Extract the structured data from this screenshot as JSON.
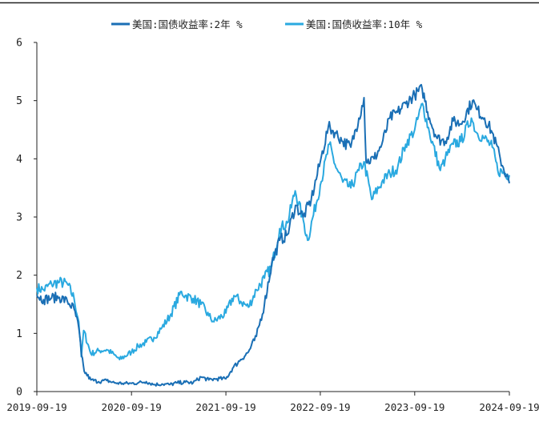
{
  "chart_data": {
    "type": "line",
    "title": "",
    "xlabel": "",
    "ylabel": "",
    "ylim": [
      0,
      6
    ],
    "yticks": [
      "0",
      "1",
      "2",
      "3",
      "4",
      "5",
      "6"
    ],
    "xticks": [
      "2019-09-19",
      "2020-09-19",
      "2021-09-19",
      "2022-09-19",
      "2023-09-19",
      "2024-09-19"
    ],
    "grid": false,
    "legend_position": "top",
    "series": [
      {
        "name": "美国:国债收益率:2年 %",
        "color": "#1a6fb5",
        "x": [
          "2019-09-19",
          "2019-10-15",
          "2019-11-15",
          "2019-12-15",
          "2020-01-15",
          "2020-02-10",
          "2020-02-28",
          "2020-03-10",
          "2020-03-20",
          "2020-04-15",
          "2020-05-15",
          "2020-06-15",
          "2020-07-15",
          "2020-08-15",
          "2020-09-19",
          "2020-10-15",
          "2020-11-15",
          "2020-12-15",
          "2021-01-15",
          "2021-02-15",
          "2021-03-15",
          "2021-04-15",
          "2021-05-15",
          "2021-06-15",
          "2021-07-15",
          "2021-08-15",
          "2021-09-19",
          "2021-10-15",
          "2021-11-15",
          "2021-12-15",
          "2022-01-15",
          "2022-02-15",
          "2022-03-15",
          "2022-04-15",
          "2022-05-15",
          "2022-06-15",
          "2022-07-15",
          "2022-08-15",
          "2022-09-19",
          "2022-10-20",
          "2022-11-15",
          "2022-12-15",
          "2023-01-15",
          "2023-02-15",
          "2023-03-07",
          "2023-03-15",
          "2023-04-15",
          "2023-05-15",
          "2023-06-15",
          "2023-07-15",
          "2023-08-15",
          "2023-09-19",
          "2023-10-18",
          "2023-11-15",
          "2023-12-15",
          "2024-01-15",
          "2024-02-15",
          "2024-03-15",
          "2024-04-30",
          "2024-05-15",
          "2024-06-15",
          "2024-07-15",
          "2024-08-15",
          "2024-09-19"
        ],
        "y": [
          1.66,
          1.58,
          1.61,
          1.62,
          1.55,
          1.42,
          1.1,
          0.62,
          0.35,
          0.2,
          0.17,
          0.19,
          0.15,
          0.14,
          0.14,
          0.15,
          0.17,
          0.12,
          0.13,
          0.12,
          0.15,
          0.16,
          0.15,
          0.25,
          0.2,
          0.22,
          0.22,
          0.4,
          0.55,
          0.68,
          0.95,
          1.5,
          2.2,
          2.6,
          2.7,
          3.2,
          3.0,
          3.3,
          3.95,
          4.55,
          4.45,
          4.3,
          4.2,
          4.7,
          5.05,
          3.95,
          4.0,
          4.25,
          4.7,
          4.8,
          4.95,
          5.1,
          5.2,
          4.7,
          4.35,
          4.3,
          4.65,
          4.6,
          5.0,
          4.85,
          4.7,
          4.45,
          4.0,
          3.58
        ]
      },
      {
        "name": "美国:国债收益率:10年 %",
        "color": "#2aa9e0",
        "x": [
          "2019-09-19",
          "2019-10-15",
          "2019-11-15",
          "2019-12-15",
          "2020-01-15",
          "2020-02-10",
          "2020-02-28",
          "2020-03-09",
          "2020-03-18",
          "2020-04-15",
          "2020-05-15",
          "2020-06-15",
          "2020-07-15",
          "2020-08-04",
          "2020-09-19",
          "2020-10-15",
          "2020-11-15",
          "2020-12-15",
          "2021-01-15",
          "2021-02-15",
          "2021-03-31",
          "2021-04-15",
          "2021-05-15",
          "2021-06-15",
          "2021-07-15",
          "2021-08-04",
          "2021-09-19",
          "2021-10-20",
          "2021-11-15",
          "2021-12-15",
          "2022-01-15",
          "2022-02-15",
          "2022-03-15",
          "2022-04-15",
          "2022-05-15",
          "2022-06-14",
          "2022-07-15",
          "2022-08-01",
          "2022-09-19",
          "2022-10-24",
          "2022-11-15",
          "2022-12-15",
          "2023-01-15",
          "2023-02-15",
          "2023-03-07",
          "2023-04-06",
          "2023-05-15",
          "2023-06-15",
          "2023-07-15",
          "2023-08-15",
          "2023-09-19",
          "2023-10-19",
          "2023-11-15",
          "2023-12-27",
          "2024-01-15",
          "2024-02-15",
          "2024-03-15",
          "2024-04-25",
          "2024-05-15",
          "2024-06-15",
          "2024-07-15",
          "2024-08-05",
          "2024-09-19"
        ],
        "y": [
          1.78,
          1.75,
          1.85,
          1.88,
          1.85,
          1.6,
          1.2,
          0.6,
          1.05,
          0.65,
          0.7,
          0.72,
          0.63,
          0.55,
          0.68,
          0.78,
          0.85,
          0.93,
          1.1,
          1.3,
          1.72,
          1.65,
          1.6,
          1.5,
          1.3,
          1.2,
          1.35,
          1.65,
          1.55,
          1.45,
          1.75,
          1.95,
          2.15,
          2.8,
          2.9,
          3.45,
          2.95,
          2.6,
          3.55,
          4.25,
          3.9,
          3.6,
          3.5,
          3.8,
          3.95,
          3.3,
          3.6,
          3.75,
          3.85,
          4.25,
          4.5,
          4.95,
          4.45,
          3.8,
          4.0,
          4.25,
          4.3,
          4.7,
          4.45,
          4.35,
          4.2,
          3.8,
          3.72
        ]
      }
    ]
  }
}
